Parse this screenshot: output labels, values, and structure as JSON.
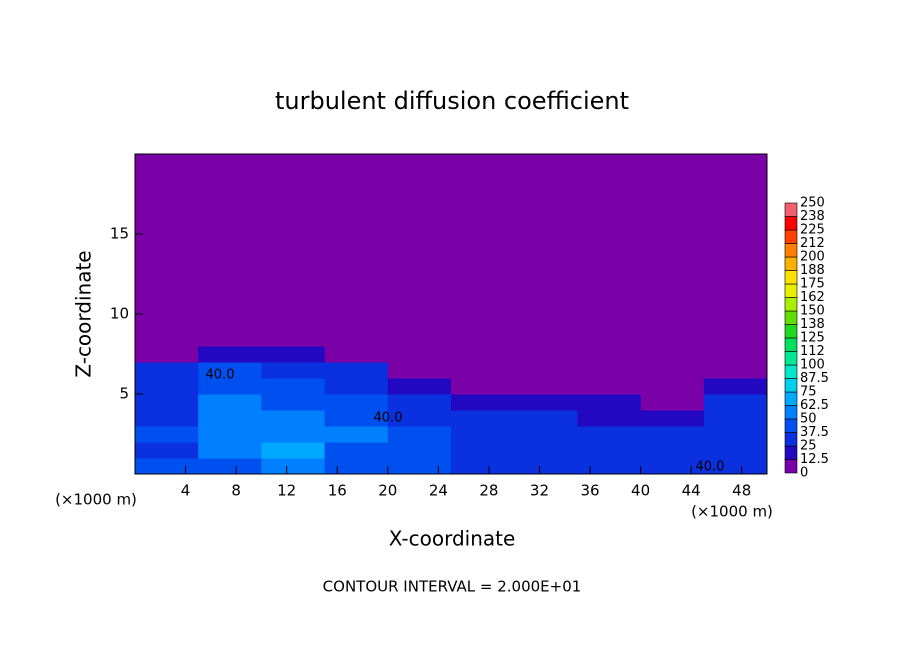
{
  "chart_data": {
    "type": "heatmap",
    "title": "turbulent diffusion coefficient",
    "x_label": "X-coordinate",
    "y_label": "Z-coordinate",
    "x_unit": "(×1000 m)",
    "y_unit": "(×1000 m)",
    "footer": "CONTOUR INTERVAL = 2.000E+01",
    "contour_labels": [
      "40.0",
      "40.0",
      "40.0"
    ],
    "xlim": [
      0,
      50
    ],
    "ylim": [
      0,
      20
    ],
    "xticks": [
      4,
      8,
      12,
      16,
      20,
      24,
      28,
      32,
      36,
      40,
      44,
      48
    ],
    "yticks": [
      5,
      10,
      15
    ],
    "xbins": [
      0,
      5,
      10,
      15,
      20,
      25,
      30,
      35,
      40,
      45,
      50
    ],
    "ybins": [
      0,
      1,
      2,
      3,
      4,
      5,
      6,
      7,
      8,
      20
    ],
    "values": [
      [
        40,
        45,
        50,
        45,
        40,
        35,
        30,
        30,
        35,
        35
      ],
      [
        35,
        55,
        65,
        45,
        40,
        35,
        30,
        30,
        30,
        30
      ],
      [
        40,
        60,
        55,
        50,
        40,
        30,
        25,
        25,
        25,
        30
      ],
      [
        35,
        55,
        50,
        45,
        35,
        30,
        25,
        20,
        20,
        30
      ],
      [
        35,
        50,
        45,
        40,
        30,
        20,
        15,
        15,
        10,
        25
      ],
      [
        30,
        45,
        40,
        30,
        15,
        10,
        10,
        8,
        5,
        20
      ],
      [
        30,
        40,
        35,
        25,
        10,
        5,
        5,
        5,
        5,
        10
      ],
      [
        5,
        15,
        20,
        5,
        5,
        5,
        5,
        5,
        5,
        5
      ],
      [
        5,
        5,
        5,
        5,
        5,
        5,
        5,
        5,
        5,
        5
      ]
    ],
    "colorbar": {
      "levels": [
        0,
        {
          "value": 12.5,
          "label": "12.5"
        },
        25,
        {
          "value": 37.5,
          "label": "37.5"
        },
        50,
        {
          "value": 62.5,
          "label": "62.5"
        },
        75,
        {
          "value": 87.5,
          "label": "87.5"
        },
        100,
        {
          "value": 112.5,
          "label": "112"
        },
        125,
        {
          "value": 137.5,
          "label": "138"
        },
        150,
        {
          "value": 162.5,
          "label": "162"
        },
        175,
        {
          "value": 187.5,
          "label": "188"
        },
        200,
        {
          "value": 212.5,
          "label": "212"
        },
        225,
        {
          "value": 237.5,
          "label": "238"
        },
        250
      ],
      "colors": [
        "#7a00a8",
        "#2208c0",
        "#0a30e0",
        "#0050f0",
        "#0080ff",
        "#00a8ff",
        "#00d0f0",
        "#00e8c8",
        "#00e898",
        "#00e060",
        "#20d820",
        "#60e000",
        "#a8f000",
        "#e8f000",
        "#ffe000",
        "#ffb000",
        "#ff8000",
        "#ff4000",
        "#ff0000",
        "#f06070"
      ]
    }
  }
}
